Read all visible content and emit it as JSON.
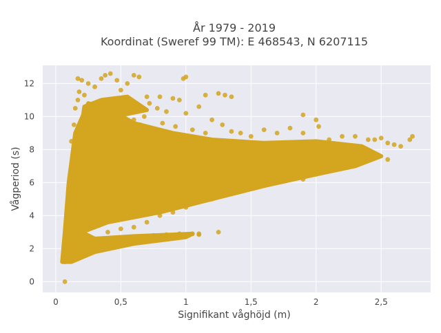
{
  "chart_data": {
    "type": "scatter",
    "title": "År 1979 - 2019",
    "subtitle": "Koordinat (Sweref 99 TM): E 468543, N 6207115",
    "xlabel": "Signifikant våghöjd (m)",
    "ylabel": "Vågperiod (s)",
    "xlim": [
      -0.1,
      2.88
    ],
    "ylim": [
      -0.65,
      13.1
    ],
    "xticks": [
      {
        "value": 0,
        "label": "0"
      },
      {
        "value": 0.5,
        "label": "0,5"
      },
      {
        "value": 1,
        "label": "1"
      },
      {
        "value": 1.5,
        "label": "1,5"
      },
      {
        "value": 2,
        "label": "2"
      },
      {
        "value": 2.5,
        "label": "2,5"
      }
    ],
    "yticks": [
      {
        "value": 0,
        "label": "0"
      },
      {
        "value": 2,
        "label": "2"
      },
      {
        "value": 4,
        "label": "4"
      },
      {
        "value": 6,
        "label": "6"
      },
      {
        "value": 8,
        "label": "8"
      },
      {
        "value": 10,
        "label": "10"
      },
      {
        "value": 12,
        "label": "12"
      }
    ],
    "grid": true,
    "background": "#e9e9f1",
    "marker_color": "#d4a51f",
    "series": [
      {
        "points": [
          [
            0.07,
            0.0
          ],
          [
            0.07,
            1.2
          ],
          [
            0.08,
            1.5
          ],
          [
            0.09,
            1.8
          ],
          [
            0.1,
            2.1
          ],
          [
            0.12,
            2.4
          ],
          [
            0.1,
            3.0
          ],
          [
            0.12,
            3.6
          ],
          [
            0.14,
            4.2
          ],
          [
            0.1,
            5.0
          ],
          [
            0.12,
            6.0
          ],
          [
            0.14,
            7.0
          ],
          [
            0.16,
            8.0
          ],
          [
            0.12,
            8.5
          ],
          [
            0.14,
            9.5
          ],
          [
            0.15,
            10.5
          ],
          [
            0.17,
            11.0
          ],
          [
            0.18,
            11.5
          ],
          [
            0.17,
            12.3
          ],
          [
            0.2,
            12.2
          ],
          [
            0.22,
            11.3
          ],
          [
            0.25,
            12.0
          ],
          [
            0.3,
            11.8
          ],
          [
            0.35,
            12.3
          ],
          [
            0.38,
            12.5
          ],
          [
            0.42,
            12.6
          ],
          [
            0.47,
            12.2
          ],
          [
            0.5,
            11.6
          ],
          [
            0.55,
            12.0
          ],
          [
            0.6,
            12.5
          ],
          [
            0.64,
            12.4
          ],
          [
            0.7,
            11.2
          ],
          [
            0.8,
            11.2
          ],
          [
            0.9,
            11.1
          ],
          [
            0.98,
            12.3
          ],
          [
            1.0,
            12.4
          ],
          [
            0.95,
            11.0
          ],
          [
            0.78,
            10.5
          ],
          [
            0.85,
            10.3
          ],
          [
            1.0,
            10.2
          ],
          [
            1.1,
            10.6
          ],
          [
            1.15,
            11.3
          ],
          [
            1.25,
            11.4
          ],
          [
            1.3,
            11.3
          ],
          [
            1.35,
            11.2
          ],
          [
            1.2,
            9.8
          ],
          [
            1.28,
            9.5
          ],
          [
            1.35,
            9.1
          ],
          [
            1.42,
            9.0
          ],
          [
            1.5,
            8.8
          ],
          [
            1.6,
            9.2
          ],
          [
            1.7,
            9.0
          ],
          [
            1.8,
            9.3
          ],
          [
            1.9,
            9.0
          ],
          [
            1.9,
            10.1
          ],
          [
            2.0,
            9.8
          ],
          [
            2.02,
            9.4
          ],
          [
            2.1,
            8.6
          ],
          [
            2.2,
            8.8
          ],
          [
            2.3,
            8.8
          ],
          [
            2.4,
            8.6
          ],
          [
            2.45,
            8.6
          ],
          [
            2.5,
            8.7
          ],
          [
            2.55,
            8.4
          ],
          [
            2.6,
            8.3
          ],
          [
            2.65,
            8.2
          ],
          [
            2.72,
            8.6
          ],
          [
            2.74,
            8.8
          ],
          [
            2.1,
            7.0
          ],
          [
            2.2,
            7.5
          ],
          [
            2.3,
            7.2
          ],
          [
            2.4,
            7.4
          ],
          [
            2.0,
            6.5
          ],
          [
            1.9,
            6.2
          ],
          [
            1.8,
            6.4
          ],
          [
            1.6,
            6.3
          ],
          [
            1.5,
            5.7
          ],
          [
            1.4,
            5.8
          ],
          [
            1.3,
            5.3
          ],
          [
            1.2,
            5.0
          ],
          [
            1.1,
            4.9
          ],
          [
            1.0,
            4.5
          ],
          [
            0.9,
            4.2
          ],
          [
            0.8,
            4.0
          ],
          [
            0.7,
            3.6
          ],
          [
            0.6,
            3.3
          ],
          [
            0.5,
            3.2
          ],
          [
            0.4,
            3.0
          ],
          [
            0.3,
            2.6
          ],
          [
            0.2,
            2.2
          ],
          [
            0.15,
            1.9
          ],
          [
            0.25,
            2.0
          ],
          [
            0.35,
            2.3
          ],
          [
            0.45,
            2.5
          ],
          [
            0.55,
            2.6
          ],
          [
            0.65,
            2.7
          ],
          [
            0.75,
            2.8
          ],
          [
            0.85,
            2.85
          ],
          [
            0.95,
            2.9
          ],
          [
            1.05,
            2.9
          ],
          [
            1.1,
            2.85
          ],
          [
            1.25,
            3.0
          ],
          [
            1.1,
            2.9
          ],
          [
            0.3,
            4.5
          ],
          [
            0.4,
            5.0
          ],
          [
            0.5,
            5.5
          ],
          [
            0.6,
            6.0
          ],
          [
            0.7,
            6.2
          ],
          [
            0.8,
            6.6
          ],
          [
            0.9,
            7.0
          ],
          [
            1.0,
            7.2
          ],
          [
            1.2,
            7.4
          ],
          [
            1.4,
            7.5
          ],
          [
            1.6,
            7.6
          ],
          [
            1.8,
            7.8
          ],
          [
            0.2,
            6.5
          ],
          [
            0.25,
            7.5
          ],
          [
            0.3,
            8.0
          ],
          [
            0.35,
            8.5
          ],
          [
            0.4,
            9.0
          ],
          [
            0.45,
            9.5
          ],
          [
            0.5,
            10.0
          ],
          [
            0.55,
            10.3
          ],
          [
            0.6,
            9.8
          ],
          [
            0.65,
            9.5
          ],
          [
            0.7,
            9.2
          ],
          [
            0.75,
            9.0
          ],
          [
            0.9,
            8.8
          ],
          [
            1.0,
            8.5
          ],
          [
            1.1,
            8.3
          ],
          [
            1.2,
            8.2
          ],
          [
            1.3,
            8.0
          ],
          [
            1.5,
            8.2
          ],
          [
            1.7,
            8.4
          ],
          [
            1.9,
            8.2
          ],
          [
            2.05,
            8.0
          ],
          [
            2.15,
            7.8
          ],
          [
            2.25,
            7.9
          ],
          [
            2.35,
            8.0
          ],
          [
            2.55,
            7.4
          ],
          [
            2.0,
            7.4
          ],
          [
            0.22,
            10.0
          ],
          [
            0.28,
            10.5
          ],
          [
            0.33,
            9.8
          ],
          [
            0.38,
            10.8
          ],
          [
            0.44,
            10.6
          ],
          [
            0.52,
            11.0
          ],
          [
            0.58,
            10.8
          ],
          [
            0.68,
            10.0
          ],
          [
            0.72,
            10.8
          ],
          [
            0.82,
            9.6
          ],
          [
            0.92,
            9.4
          ],
          [
            1.05,
            9.2
          ],
          [
            1.15,
            9.0
          ],
          [
            0.19,
            3.5
          ],
          [
            0.21,
            4.0
          ],
          [
            0.23,
            5.5
          ],
          [
            0.27,
            3.8
          ],
          [
            0.33,
            3.4
          ],
          [
            0.36,
            4.2
          ],
          [
            0.42,
            3.9
          ],
          [
            0.48,
            4.4
          ],
          [
            0.52,
            4.8
          ],
          [
            0.58,
            5.0
          ],
          [
            0.62,
            4.6
          ],
          [
            0.68,
            5.3
          ],
          [
            0.72,
            4.9
          ],
          [
            0.78,
            5.6
          ],
          [
            0.83,
            5.2
          ],
          [
            0.88,
            5.8
          ],
          [
            0.93,
            6.4
          ],
          [
            0.97,
            5.9
          ],
          [
            1.02,
            6.6
          ],
          [
            1.08,
            6.1
          ],
          [
            1.15,
            6.8
          ],
          [
            1.22,
            6.3
          ],
          [
            1.3,
            7.0
          ],
          [
            1.38,
            6.6
          ],
          [
            1.45,
            7.1
          ],
          [
            1.55,
            6.9
          ],
          [
            1.65,
            7.2
          ],
          [
            1.75,
            7.0
          ],
          [
            1.85,
            7.3
          ],
          [
            1.95,
            7.1
          ],
          [
            2.05,
            7.6
          ],
          [
            2.15,
            7.3
          ],
          [
            2.28,
            7.7
          ]
        ]
      }
    ]
  }
}
